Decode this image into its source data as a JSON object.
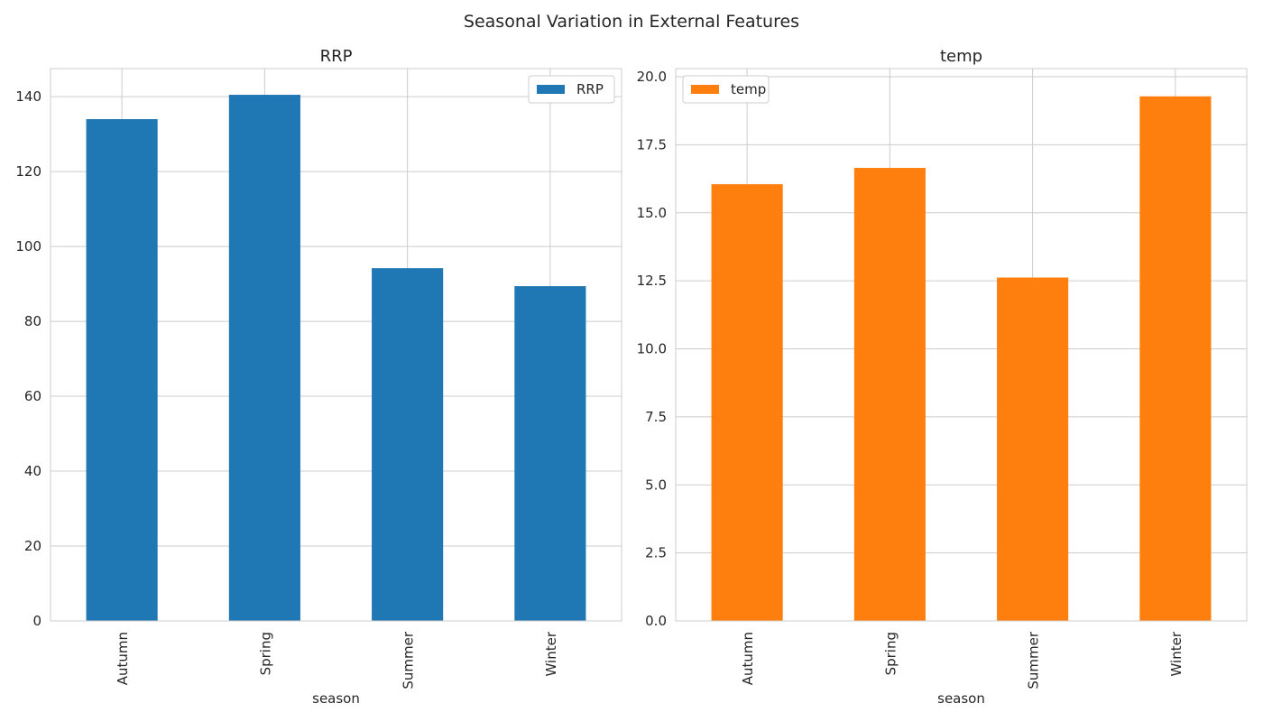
{
  "figure": {
    "suptitle": "Seasonal Variation in External Features"
  },
  "chart_data": [
    {
      "type": "bar",
      "title": "RRP",
      "xlabel": "season",
      "ylabel": "",
      "categories": [
        "Autumn",
        "Spring",
        "Summer",
        "Winter"
      ],
      "series": [
        {
          "name": "RRP",
          "values": [
            134,
            140.5,
            94.2,
            89.4
          ],
          "color": "#1f77b4"
        }
      ],
      "ylim": [
        0,
        147.5
      ],
      "yticks": [
        0,
        20,
        40,
        60,
        80,
        100,
        120,
        140
      ],
      "ytick_labels": [
        "0",
        "20",
        "40",
        "60",
        "80",
        "100",
        "120",
        "140"
      ],
      "legend": {
        "placement": "upper-right",
        "entries": [
          "RRP"
        ]
      },
      "grid": true
    },
    {
      "type": "bar",
      "title": "temp",
      "xlabel": "season",
      "ylabel": "",
      "categories": [
        "Autumn",
        "Spring",
        "Summer",
        "Winter"
      ],
      "series": [
        {
          "name": "temp",
          "values": [
            16.05,
            16.65,
            12.62,
            19.28
          ],
          "color": "#ff7f0e"
        }
      ],
      "ylim": [
        0,
        20.3
      ],
      "yticks": [
        0,
        2.5,
        5,
        7.5,
        10,
        12.5,
        15,
        17.5,
        20
      ],
      "ytick_labels": [
        "0.0",
        "2.5",
        "5.0",
        "7.5",
        "10.0",
        "12.5",
        "15.0",
        "17.5",
        "20.0"
      ],
      "legend": {
        "placement": "upper-left",
        "entries": [
          "temp"
        ]
      },
      "grid": true
    }
  ]
}
